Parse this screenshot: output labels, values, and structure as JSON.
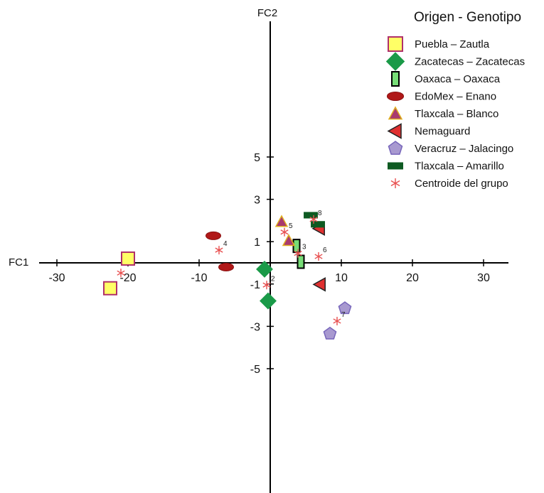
{
  "chart_data": {
    "type": "scatter",
    "xlabel": "FC1",
    "ylabel": "FC2",
    "xlim": [
      -33,
      33
    ],
    "ylim": [
      -5.5,
      6
    ],
    "x_ticks": [
      -30,
      -20,
      -10,
      10,
      20,
      30
    ],
    "x_tick_labels": [
      "-30",
      "-20",
      "-10",
      "10",
      "20",
      "30"
    ],
    "y_ticks": [
      5,
      3,
      1,
      -1,
      -3,
      -5
    ],
    "y_tick_labels": [
      "5",
      "3",
      "1",
      "-1",
      "-3",
      "-5"
    ],
    "grid": false,
    "legend_title": "Origen - Genotipo",
    "legend_position": "top-right",
    "series": [
      {
        "name": "Puebla – Zautla",
        "marker": "square",
        "fill": "#ffff66",
        "stroke": "#b0306a",
        "points": [
          {
            "x": -20,
            "y": 0.2
          },
          {
            "x": -22.5,
            "y": -1.2
          }
        ]
      },
      {
        "name": "Zacatecas – Zacatecas",
        "marker": "diamond",
        "fill": "#1a9a48",
        "stroke": "#1a9a48",
        "points": [
          {
            "x": -0.8,
            "y": -0.3
          },
          {
            "x": -0.3,
            "y": -1.8
          }
        ]
      },
      {
        "name": "Oaxaca – Oaxaca",
        "marker": "rect-v",
        "fill": "#77dd77",
        "stroke": "#000000",
        "points": [
          {
            "x": 3.7,
            "y": 0.8
          },
          {
            "x": 4.3,
            "y": 0.05
          }
        ]
      },
      {
        "name": "EdoMex – Enano",
        "marker": "ellipse",
        "fill": "#b01818",
        "stroke": "#8a1010",
        "points": [
          {
            "x": -8,
            "y": 1.28
          },
          {
            "x": -6.2,
            "y": -0.2
          }
        ]
      },
      {
        "name": "Tlaxcala – Blanco",
        "marker": "triangle",
        "fill": "#a93a6e",
        "stroke": "#e0b020",
        "points": [
          {
            "x": 1.6,
            "y": 1.95
          },
          {
            "x": 2.6,
            "y": 1.05
          }
        ]
      },
      {
        "name": "Nemaguard",
        "marker": "triangle-left",
        "fill": "#e03030",
        "stroke": "#222222",
        "points": [
          {
            "x": 6.9,
            "y": 1.62
          },
          {
            "x": 7.0,
            "y": -1.02
          }
        ]
      },
      {
        "name": "Veracruz – Jalacingo",
        "marker": "pentagon",
        "fill": "#a899d0",
        "stroke": "#7766bb",
        "points": [
          {
            "x": 10.5,
            "y": -2.15
          },
          {
            "x": 8.4,
            "y": -3.35
          }
        ]
      },
      {
        "name": "Tlaxcala – Amarillo",
        "marker": "rect-h",
        "fill": "#0e5a22",
        "stroke": "#0e5a22",
        "points": [
          {
            "x": 5.7,
            "y": 2.25
          },
          {
            "x": 6.7,
            "y": 1.82
          }
        ]
      },
      {
        "name": "Centroide del grupo",
        "marker": "star",
        "fill": "#e85050",
        "stroke": "#e85050",
        "points": [
          {
            "x": -21,
            "y": -0.48,
            "label": ""
          },
          {
            "x": -0.5,
            "y": -1.05,
            "label": "2"
          },
          {
            "x": 3.9,
            "y": 0.45,
            "label": "3"
          },
          {
            "x": -7.2,
            "y": 0.6,
            "label": "4"
          },
          {
            "x": 2.0,
            "y": 1.45,
            "label": "5"
          },
          {
            "x": 6.8,
            "y": 0.3,
            "label": "6"
          },
          {
            "x": 9.4,
            "y": -2.75,
            "label": "7"
          },
          {
            "x": 6.1,
            "y": 2.05,
            "label": "8"
          }
        ]
      }
    ]
  }
}
